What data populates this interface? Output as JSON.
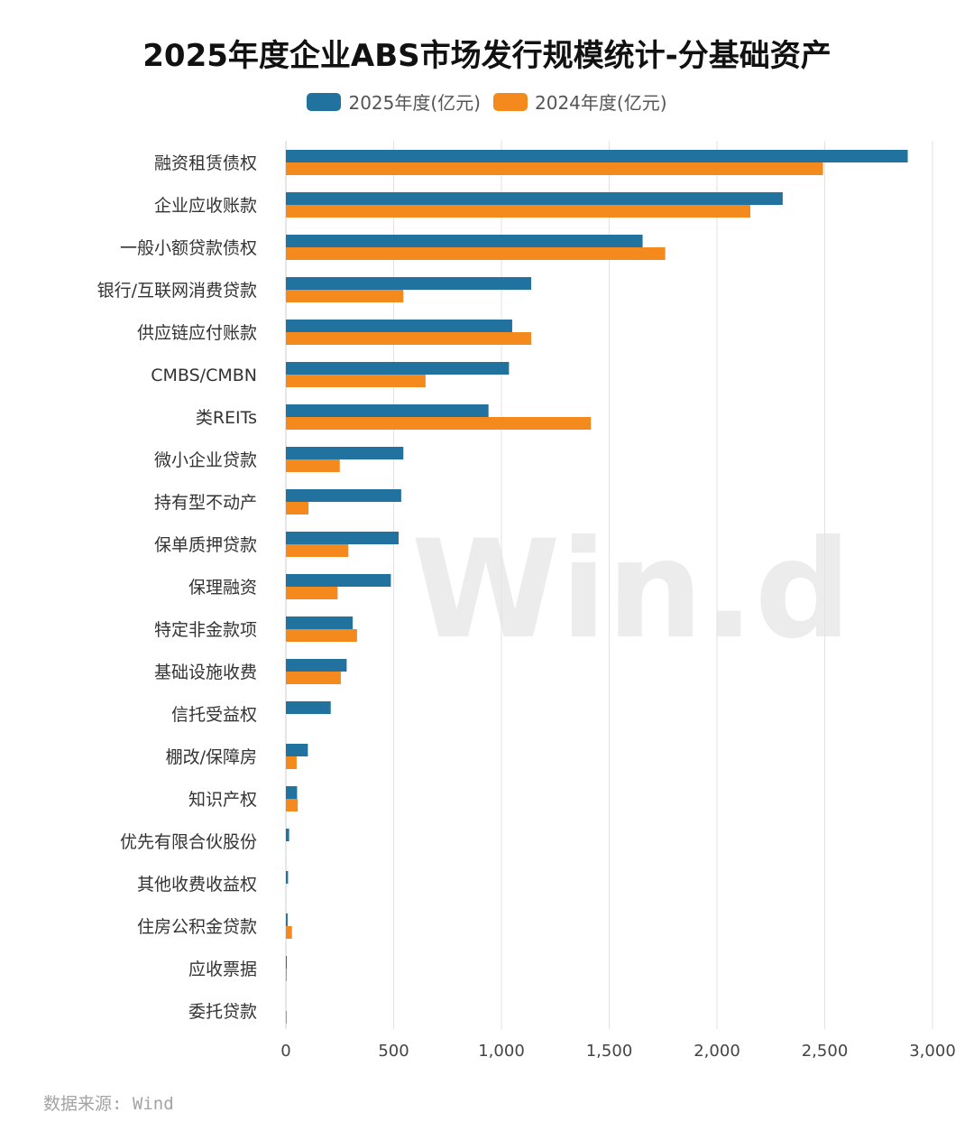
{
  "chart_data": {
    "type": "bar",
    "orientation": "horizontal",
    "title": "2025年度企业ABS市场发行规模统计-分基础资产",
    "categories": [
      "融资租赁债权",
      "企业应收账款",
      "一般小额贷款债权",
      "银行/互联网消费贷款",
      "供应链应付账款",
      "CMBS/CMBN",
      "类REITs",
      "微小企业贷款",
      "持有型不动产",
      "保单质押贷款",
      "保理融资",
      "特定非金款项",
      "基础设施收费",
      "信托受益权",
      "棚改/保障房",
      "知识产权",
      "优先有限合伙股份",
      "其他收费收益权",
      "住房公积金贷款",
      "应收票据",
      "委托贷款"
    ],
    "series": [
      {
        "name": "2025年度(亿元)",
        "color": "#21729f",
        "values": [
          2885,
          2305,
          1655,
          1138,
          1050,
          1035,
          940,
          545,
          535,
          523,
          487,
          310,
          282,
          208,
          102,
          52,
          15,
          10,
          8,
          3,
          0
        ]
      },
      {
        "name": "2024年度(亿元)",
        "color": "#f48a1e",
        "values": [
          2492,
          2155,
          1760,
          545,
          1138,
          648,
          1415,
          250,
          105,
          290,
          240,
          330,
          255,
          0,
          50,
          55,
          0,
          0,
          28,
          4,
          2
        ]
      }
    ],
    "xlim": [
      0,
      3000
    ],
    "xticks": [
      0,
      500,
      1000,
      1500,
      2000,
      2500,
      3000
    ],
    "xtick_labels": [
      "0",
      "500",
      "1,000",
      "1,500",
      "2,000",
      "2,500",
      "3,000"
    ],
    "grid": true,
    "legend_position": "top-center"
  },
  "watermark": "Win.d",
  "source": "数据来源: Wind"
}
